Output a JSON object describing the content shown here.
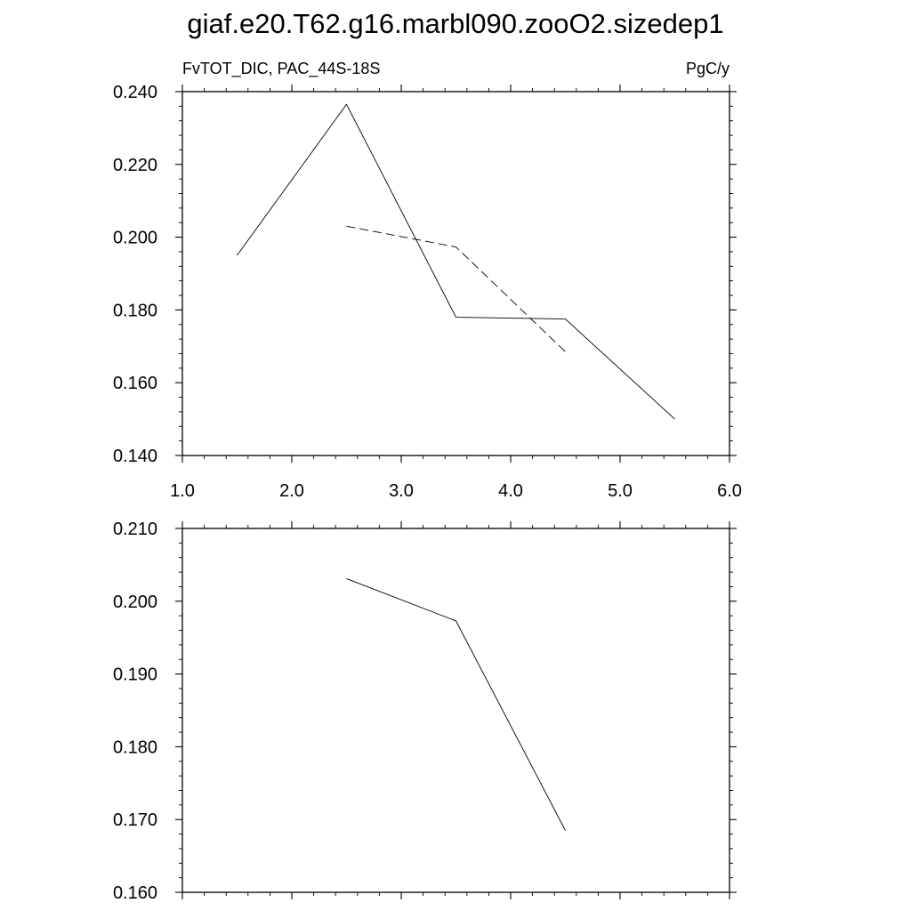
{
  "title": "giaf.e20.T62.g16.marbl090.zooO2.sizedep1",
  "chart_data": [
    {
      "type": "line",
      "left_label": "FvTOT_DIC, PAC_44S-18S",
      "right_label": "PgC/y",
      "xlim": [
        1.0,
        6.0
      ],
      "ylim": [
        0.14,
        0.24
      ],
      "x_ticks": [
        "1.0",
        "2.0",
        "3.0",
        "4.0",
        "5.0",
        "6.0"
      ],
      "y_ticks": [
        "0.140",
        "0.160",
        "0.180",
        "0.200",
        "0.220",
        "0.240"
      ],
      "grid": false,
      "series": [
        {
          "style": "solid",
          "color": "#000000",
          "x": [
            1.5,
            2.5,
            3.5,
            4.5,
            5.5
          ],
          "y": [
            0.195,
            0.2365,
            0.178,
            0.1775,
            0.15
          ]
        },
        {
          "style": "dashed",
          "color": "#000000",
          "x": [
            2.5,
            3.5,
            4.5
          ],
          "y": [
            0.203,
            0.1973,
            0.1685
          ]
        }
      ]
    },
    {
      "type": "line",
      "xlim": [
        1.0,
        6.0
      ],
      "ylim": [
        0.16,
        0.21
      ],
      "y_ticks": [
        "0.160",
        "0.170",
        "0.180",
        "0.190",
        "0.200",
        "0.210"
      ],
      "grid": false,
      "series": [
        {
          "style": "solid",
          "color": "#000000",
          "x": [
            2.5,
            3.5,
            4.5
          ],
          "y": [
            0.2031,
            0.1973,
            0.1685
          ]
        }
      ]
    }
  ]
}
